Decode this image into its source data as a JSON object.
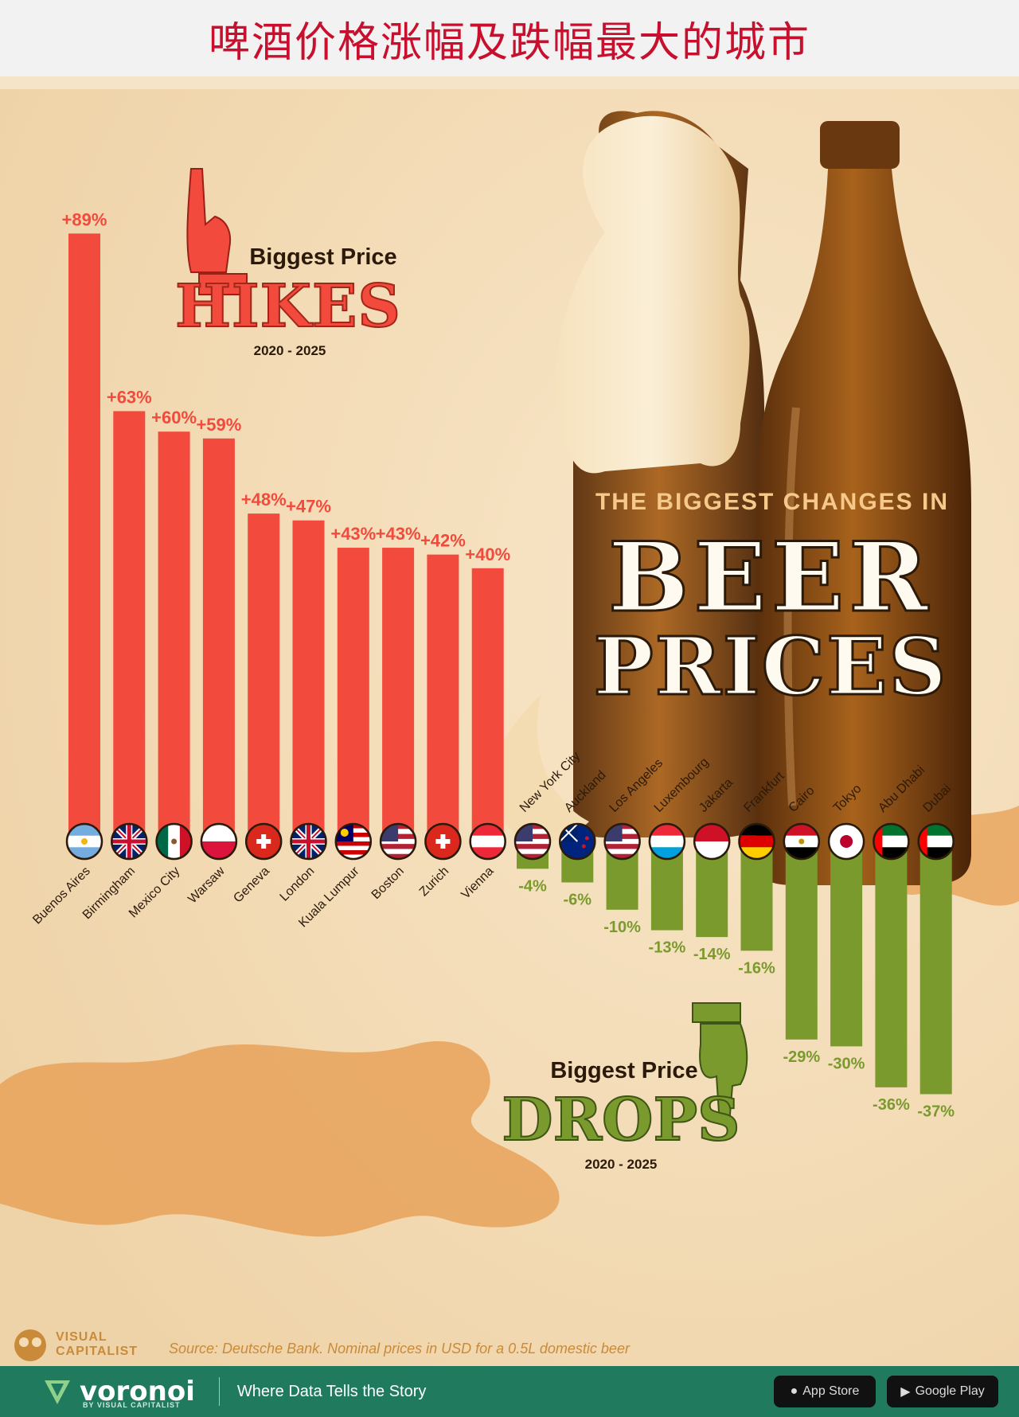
{
  "header": {
    "title": "啤酒价格涨幅及跌幅最大的城市"
  },
  "poster": {
    "headline_small": "THE BIGGEST CHANGES IN",
    "headline_big_1": "BEER",
    "headline_big_2": "PRICES",
    "hikes_label": "Biggest Price",
    "hikes_word": "HIKES",
    "hikes_years": "2020 - 2025",
    "drops_label": "Biggest Price",
    "drops_word": "DROPS",
    "drops_years": "2020 - 2025",
    "source": "Source: Deutsche Bank. Nominal prices in USD for a 0.5L domestic beer",
    "vc_logo_line1": "VISUAL",
    "vc_logo_line2": "CAPITALIST"
  },
  "footer": {
    "brand": "voronoi",
    "brand_sub": "BY VISUAL CAPITALIST",
    "tagline": "Where Data Tells the Story",
    "store_1": "App Store",
    "store_2": "Google Play"
  },
  "colors": {
    "hike": "#f24a3c",
    "drop": "#7a9a2e",
    "title": "#c8102e",
    "footer": "#1f7a5e"
  },
  "chart_data": {
    "type": "bar",
    "title": "THE BIGGEST CHANGES IN BEER PRICES",
    "xlabel": "",
    "ylabel": "",
    "unit": "%",
    "ylim": [
      -40,
      90
    ],
    "series": [
      {
        "name": "Biggest Price HIKES",
        "categories": [
          "Buenos Aires",
          "Birmingham",
          "Mexico City",
          "Warsaw",
          "Geneva",
          "London",
          "Kuala Lumpur",
          "Boston",
          "Zurich",
          "Vienna"
        ],
        "values": [
          89,
          63,
          60,
          59,
          48,
          47,
          43,
          43,
          42,
          40
        ],
        "labels": [
          "+89%",
          "+63%",
          "+60%",
          "+59%",
          "+48%",
          "+47%",
          "+43%",
          "+43%",
          "+42%",
          "+40%"
        ],
        "flags": [
          "argentina-flag-icon",
          "uk-flag-icon",
          "mexico-flag-icon",
          "poland-flag-icon",
          "switzerland-flag-icon",
          "uk-flag-icon",
          "malaysia-flag-icon",
          "usa-flag-icon",
          "switzerland-flag-icon",
          "austria-flag-icon"
        ]
      },
      {
        "name": "Biggest Price DROPS",
        "categories": [
          "New York City",
          "Auckland",
          "Los Angeles",
          "Luxembourg",
          "Jakarta",
          "Frankfurt",
          "Cairo",
          "Tokyo",
          "Abu Dhabi",
          "Dubai"
        ],
        "values": [
          -4,
          -6,
          -10,
          -13,
          -14,
          -16,
          -29,
          -30,
          -36,
          -37
        ],
        "labels": [
          "-4%",
          "-6%",
          "-10%",
          "-13%",
          "-14%",
          "-16%",
          "-29%",
          "-30%",
          "-36%",
          "-37%"
        ],
        "flags": [
          "usa-flag-icon",
          "new-zealand-flag-icon",
          "usa-flag-icon",
          "luxembourg-flag-icon",
          "indonesia-flag-icon",
          "germany-flag-icon",
          "egypt-flag-icon",
          "japan-flag-icon",
          "uae-flag-icon",
          "uae-flag-icon"
        ]
      }
    ]
  }
}
